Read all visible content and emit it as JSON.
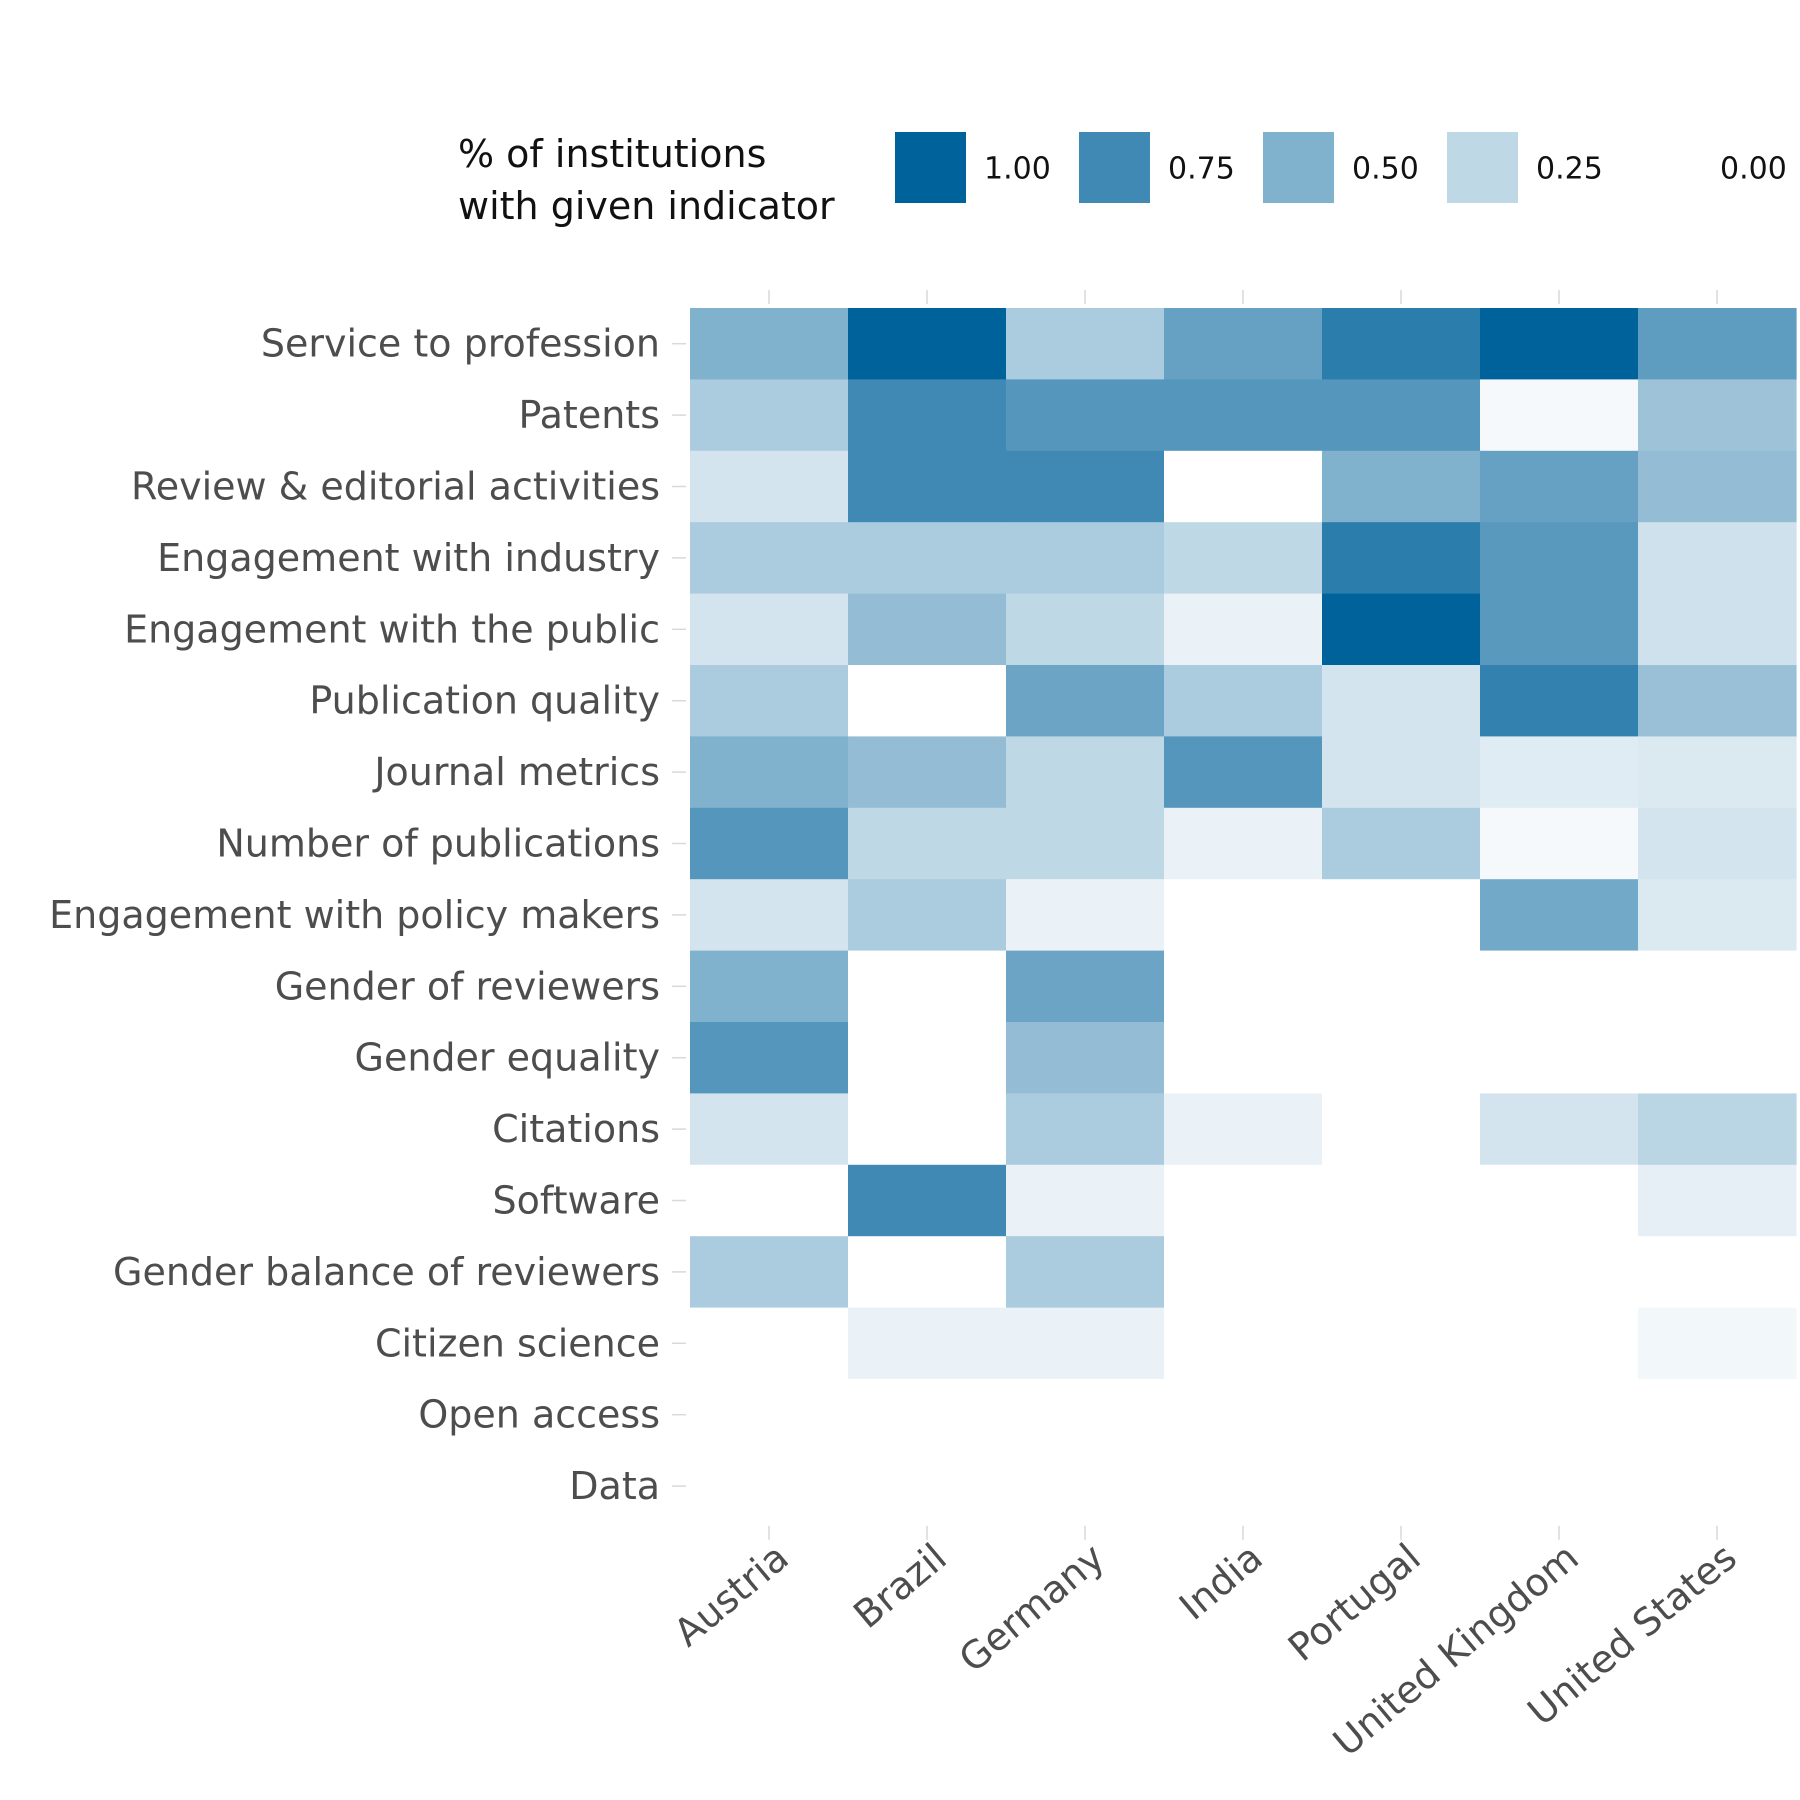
{
  "chart_data": {
    "type": "heatmap",
    "legend": {
      "title_lines": [
        "% of institutions",
        "with given indicator"
      ],
      "breaks": [
        1.0,
        0.75,
        0.5,
        0.25,
        0.0
      ],
      "labels": [
        "1.00",
        "0.75",
        "0.50",
        "0.25",
        "0.00"
      ],
      "placement": "top"
    },
    "color_low": "#ffffff",
    "color_high": "#00629b",
    "columns": [
      "Austria",
      "Brazil",
      "Germany",
      "India",
      "Portugal",
      "United Kingdom",
      "United States"
    ],
    "rows": [
      "Service to profession",
      "Patents",
      "Review & editorial activities",
      "Engagement with industry",
      "Engagement with the public",
      "Publication quality",
      "Journal metrics",
      "Number of publications",
      "Engagement with policy makers",
      "Gender of reviewers",
      "Gender equality",
      "Citations",
      "Software",
      "Gender balance of reviewers",
      "Citizen science",
      "Open access",
      "Data"
    ],
    "values": [
      [
        0.5,
        1.0,
        0.33,
        0.6,
        0.83,
        1.0,
        0.63
      ],
      [
        0.33,
        0.75,
        0.67,
        0.67,
        0.67,
        0.04,
        0.38
      ],
      [
        0.17,
        0.75,
        0.75,
        0.0,
        0.5,
        0.6,
        0.42
      ],
      [
        0.33,
        0.33,
        0.33,
        0.25,
        0.83,
        0.65,
        0.19
      ],
      [
        0.17,
        0.42,
        0.25,
        0.08,
        1.0,
        0.65,
        0.19
      ],
      [
        0.33,
        0.0,
        0.58,
        0.33,
        0.17,
        0.8,
        0.4
      ],
      [
        0.5,
        0.42,
        0.25,
        0.67,
        0.17,
        0.12,
        0.14
      ],
      [
        0.67,
        0.25,
        0.25,
        0.08,
        0.33,
        0.04,
        0.17
      ],
      [
        0.17,
        0.33,
        0.08,
        0.0,
        0.0,
        0.55,
        0.14
      ],
      [
        0.5,
        0.0,
        0.58,
        0.0,
        0.0,
        0.0,
        0.0
      ],
      [
        0.67,
        0.0,
        0.42,
        0.0,
        0.0,
        0.0,
        0.0
      ],
      [
        0.17,
        0.0,
        0.33,
        0.08,
        0.0,
        0.17,
        0.27
      ],
      [
        0.0,
        0.75,
        0.08,
        0.0,
        0.0,
        0.0,
        0.1
      ],
      [
        0.33,
        0.0,
        0.33,
        0.0,
        0.0,
        0.0,
        0.0
      ],
      [
        0.0,
        0.08,
        0.08,
        0.0,
        0.0,
        0.0,
        0.05
      ],
      [
        0.0,
        0.0,
        0.0,
        0.0,
        0.0,
        0.0,
        0.0
      ],
      [
        0.0,
        0.0,
        0.0,
        0.0,
        0.0,
        0.0,
        0.0
      ]
    ],
    "title": "",
    "xlabel": "",
    "ylabel": "",
    "grid": false
  }
}
